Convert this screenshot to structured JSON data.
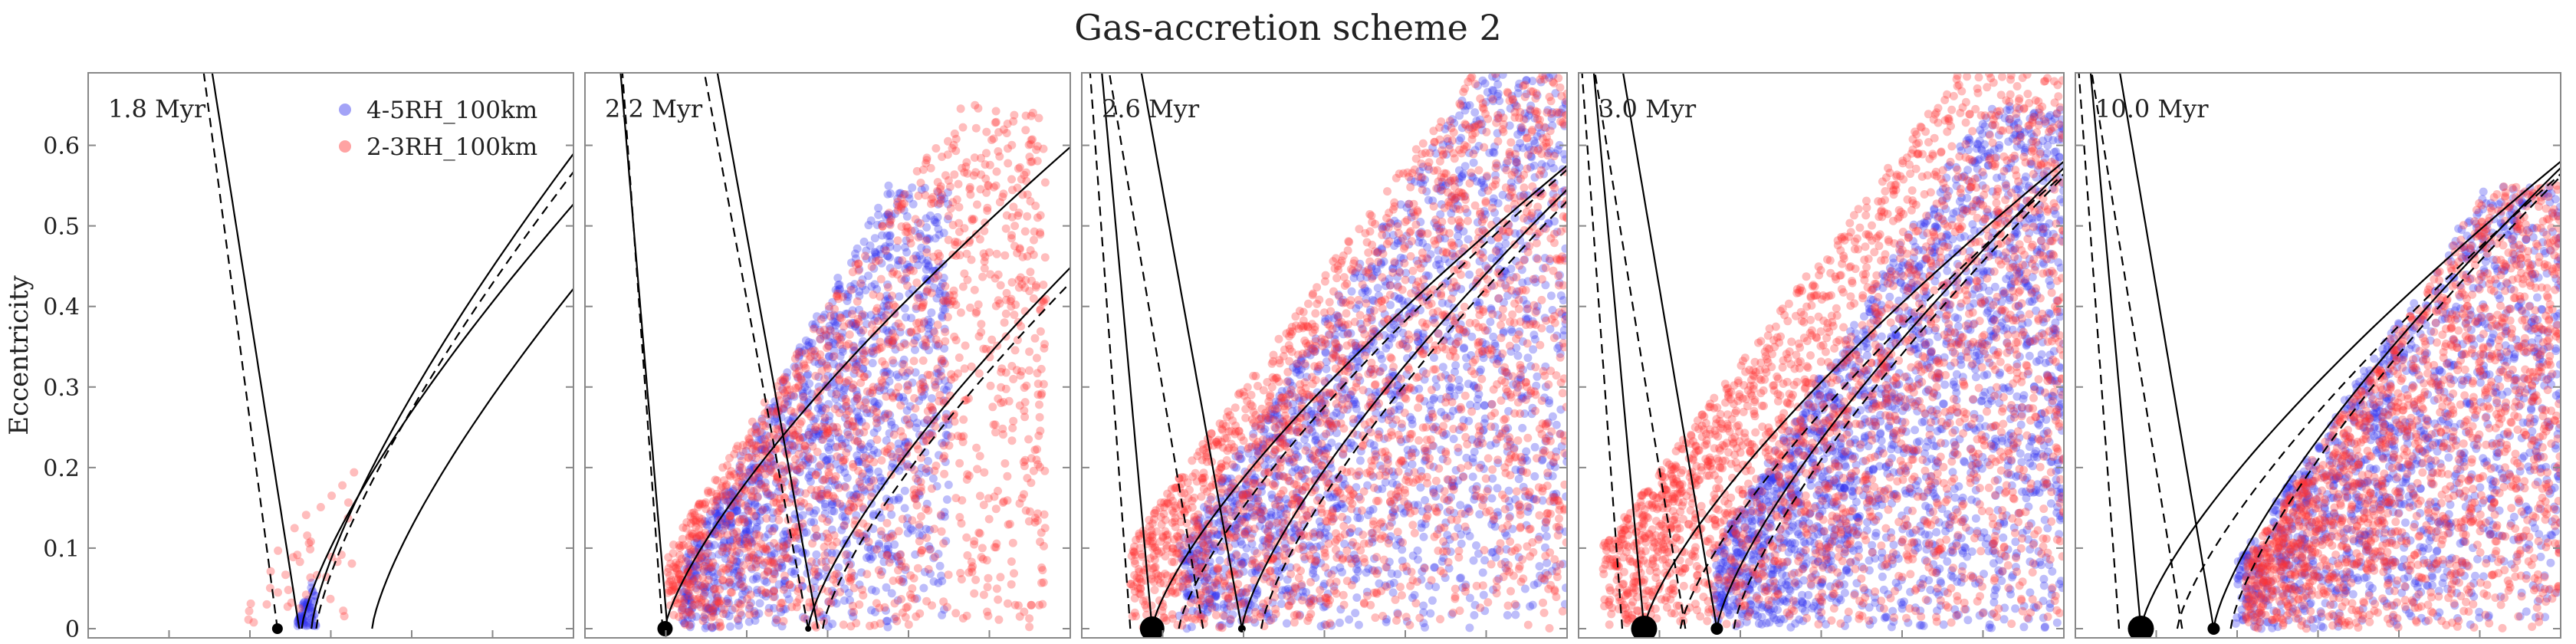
{
  "chart_data": {
    "type": "scatter",
    "title": "Gas-accretion scheme 2",
    "ylabel": "Eccentricity",
    "xlabel": "",
    "ylim": [
      0,
      0.69
    ],
    "xlim": [
      0,
      1
    ],
    "yticks": [
      0,
      0.1,
      0.2,
      0.3,
      0.4,
      0.5,
      0.6
    ],
    "ytick_labels": [
      "0",
      "0.1",
      "0.2",
      "0.3",
      "0.4",
      "0.5",
      "0.6"
    ],
    "legend": {
      "location": "top-right of first panel",
      "entries": [
        {
          "label": "4-5RH_100km",
          "color": "#3333ee"
        },
        {
          "label": "2-3RH_100km",
          "color": "#ff3333"
        }
      ]
    },
    "panels": [
      {
        "time_label": "1.8 Myr",
        "planets": [
          {
            "a": 0.39,
            "size": 7
          }
        ],
        "curves": [
          {
            "vertex": 0.39,
            "dir": "left",
            "k": 0.22,
            "style": "dashed"
          },
          {
            "vertex": 0.435,
            "dir": "left",
            "k": 0.26,
            "style": "solid"
          },
          {
            "vertex": 0.44,
            "dir": "right",
            "k": 0.7,
            "style": "solid"
          },
          {
            "vertex": 0.47,
            "dir": "right",
            "k": 0.6,
            "style": "dashed"
          },
          {
            "vertex": 0.46,
            "dir": "right",
            "k": 0.58,
            "style": "solid"
          },
          {
            "vertex": 0.585,
            "dir": "right",
            "k": 0.7,
            "style": "solid"
          }
        ],
        "clouds": [
          {
            "series": "4-5RH_100km",
            "n": 60,
            "a0": 0.43,
            "a1": 0.47,
            "e_lo": 0.0,
            "e_hi": 0.06,
            "seed": 11
          },
          {
            "series": "2-3RH_100km",
            "n": 40,
            "a0": 0.33,
            "a1": 0.55,
            "e_lo": 0.0,
            "e_hi": 0.22,
            "seed": 12
          }
        ]
      },
      {
        "time_label": "2.2 Myr",
        "planets": [
          {
            "a": 0.165,
            "size": 10
          },
          {
            "a": 0.46,
            "size": 4
          }
        ],
        "curves": [
          {
            "vertex": 0.16,
            "dir": "left",
            "k": 0.12,
            "style": "dashed"
          },
          {
            "vertex": 0.17,
            "dir": "left",
            "k": 0.14,
            "style": "solid"
          },
          {
            "vertex": 0.165,
            "dir": "right",
            "k": 0.88,
            "style": "solid"
          },
          {
            "vertex": 0.48,
            "dir": "left",
            "k": 0.3,
            "style": "solid"
          },
          {
            "vertex": 0.46,
            "dir": "left",
            "k": 0.31,
            "style": "dashed"
          },
          {
            "vertex": 0.46,
            "dir": "right",
            "k": 0.84,
            "style": "solid"
          },
          {
            "vertex": 0.49,
            "dir": "right",
            "k": 0.84,
            "style": "dashed"
          }
        ],
        "clouds": [
          {
            "series": "4-5RH_100km",
            "n": 1300,
            "a0": 0.2,
            "a1": 0.75,
            "e_lo": 0.0,
            "e_hi": 0.55,
            "seed": 21
          },
          {
            "series": "2-3RH_100km",
            "n": 1500,
            "a0": 0.17,
            "a1": 0.95,
            "e_lo": 0.0,
            "e_hi": 0.65,
            "seed": 22
          }
        ]
      },
      {
        "time_label": "2.6 Myr",
        "planets": [
          {
            "a": 0.145,
            "size": 16
          },
          {
            "a": 0.33,
            "size": 5
          }
        ],
        "curves": [
          {
            "vertex": 0.1,
            "dir": "left",
            "k": 0.12,
            "style": "dashed"
          },
          {
            "vertex": 0.145,
            "dir": "left",
            "k": 0.15,
            "style": "solid"
          },
          {
            "vertex": 0.145,
            "dir": "right",
            "k": 0.95,
            "style": "solid"
          },
          {
            "vertex": 0.2,
            "dir": "right",
            "k": 0.9,
            "style": "dashed"
          },
          {
            "vertex": 0.33,
            "dir": "left",
            "k": 0.3,
            "style": "solid"
          },
          {
            "vertex": 0.25,
            "dir": "left",
            "k": 0.28,
            "style": "dashed"
          },
          {
            "vertex": 0.33,
            "dir": "right",
            "k": 0.8,
            "style": "solid"
          },
          {
            "vertex": 0.37,
            "dir": "right",
            "k": 0.78,
            "style": "dashed"
          }
        ],
        "clouds": [
          {
            "series": "4-5RH_100km",
            "n": 1700,
            "a0": 0.2,
            "a1": 1.0,
            "e_lo": 0.0,
            "e_hi": 0.69,
            "seed": 31
          },
          {
            "series": "2-3RH_100km",
            "n": 2000,
            "a0": 0.1,
            "a1": 1.0,
            "e_lo": 0.0,
            "e_hi": 0.69,
            "seed": 32
          }
        ]
      },
      {
        "time_label": "3.0 Myr",
        "planets": [
          {
            "a": 0.135,
            "size": 17
          },
          {
            "a": 0.285,
            "size": 8
          }
        ],
        "curves": [
          {
            "vertex": 0.09,
            "dir": "left",
            "k": 0.12,
            "style": "dashed"
          },
          {
            "vertex": 0.135,
            "dir": "left",
            "k": 0.15,
            "style": "solid"
          },
          {
            "vertex": 0.135,
            "dir": "right",
            "k": 0.95,
            "style": "solid"
          },
          {
            "vertex": 0.21,
            "dir": "right",
            "k": 0.9,
            "style": "dashed"
          },
          {
            "vertex": 0.285,
            "dir": "left",
            "k": 0.28,
            "style": "solid"
          },
          {
            "vertex": 0.22,
            "dir": "left",
            "k": 0.27,
            "style": "dashed"
          },
          {
            "vertex": 0.285,
            "dir": "right",
            "k": 0.8,
            "style": "solid"
          },
          {
            "vertex": 0.32,
            "dir": "right",
            "k": 0.78,
            "style": "dashed"
          }
        ],
        "clouds": [
          {
            "series": "4-5RH_100km",
            "n": 2000,
            "a0": 0.28,
            "a1": 1.0,
            "e_lo": 0.0,
            "e_hi": 0.65,
            "seed": 41
          },
          {
            "series": "2-3RH_100km",
            "n": 2300,
            "a0": 0.05,
            "a1": 1.0,
            "e_lo": 0.0,
            "e_hi": 0.69,
            "seed": 42
          }
        ]
      },
      {
        "time_label": "10.0 Myr",
        "planets": [
          {
            "a": 0.135,
            "size": 17
          },
          {
            "a": 0.285,
            "size": 8
          }
        ],
        "curves": [
          {
            "vertex": 0.09,
            "dir": "left",
            "k": 0.12,
            "style": "dashed"
          },
          {
            "vertex": 0.135,
            "dir": "left",
            "k": 0.15,
            "style": "solid"
          },
          {
            "vertex": 0.135,
            "dir": "right",
            "k": 0.95,
            "style": "solid"
          },
          {
            "vertex": 0.21,
            "dir": "right",
            "k": 0.9,
            "style": "dashed"
          },
          {
            "vertex": 0.285,
            "dir": "left",
            "k": 0.28,
            "style": "solid"
          },
          {
            "vertex": 0.22,
            "dir": "left",
            "k": 0.27,
            "style": "dashed"
          },
          {
            "vertex": 0.285,
            "dir": "right",
            "k": 0.8,
            "style": "solid"
          },
          {
            "vertex": 0.32,
            "dir": "right",
            "k": 0.78,
            "style": "dashed"
          }
        ],
        "clouds": [
          {
            "series": "4-5RH_100km",
            "n": 1300,
            "a0": 0.33,
            "a1": 1.0,
            "e_lo": 0.0,
            "e_hi": 0.55,
            "seed": 51
          },
          {
            "series": "2-3RH_100km",
            "n": 1700,
            "a0": 0.35,
            "a1": 1.0,
            "e_lo": 0.0,
            "e_hi": 0.55,
            "seed": 52
          }
        ]
      }
    ]
  }
}
